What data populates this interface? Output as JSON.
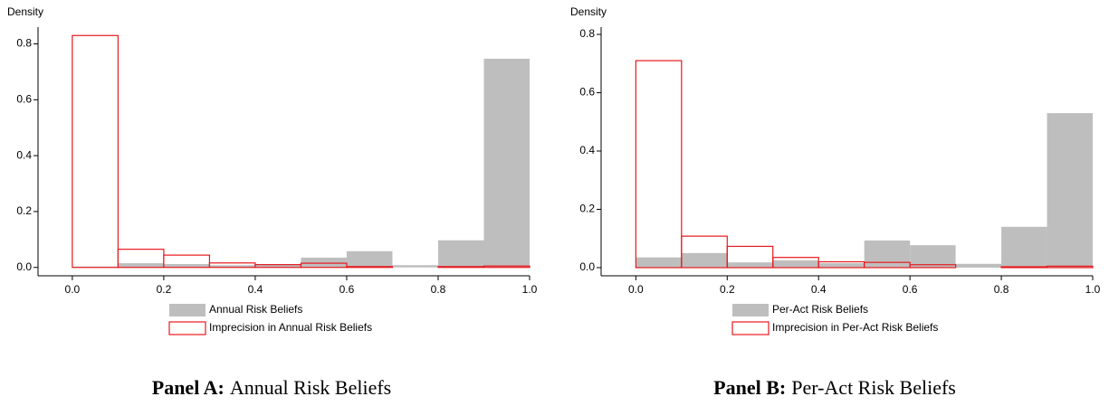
{
  "chart_data": [
    {
      "type": "histogram",
      "panel": "Panel A:",
      "title": "Annual Risk Beliefs",
      "ylabel": "Density",
      "bins": [
        0,
        0.1,
        0.2,
        0.3,
        0.4,
        0.5,
        0.6,
        0.7,
        0.8,
        0.9,
        1.0
      ],
      "xlim": [
        -0.075,
        1.0
      ],
      "ylim": [
        -0.03,
        0.86
      ],
      "xticks": [
        {
          "value": 0,
          "label": "0.0"
        },
        0.2,
        0.4,
        0.6,
        0.8,
        {
          "value": 1,
          "label": "1.0"
        }
      ],
      "yticks": [
        {
          "value": 0,
          "label": "0.0"
        },
        0.2,
        0.4,
        0.6,
        0.8
      ],
      "series": [
        {
          "name": "Annual Risk Beliefs",
          "color": "#bebebe",
          "filled": true,
          "values": [
            0.003,
            0.015,
            0.012,
            0.008,
            0.01,
            0.035,
            0.058,
            0.008,
            0.097,
            0.747
          ]
        },
        {
          "name": "Imprecision in Annual Risk Beliefs",
          "color": "#e8191e",
          "filled": false,
          "values": [
            0.83,
            0.065,
            0.044,
            0.016,
            0.01,
            0.015,
            0.003,
            0,
            0.003,
            0.005
          ]
        }
      ]
    },
    {
      "type": "histogram",
      "panel": "Panel B:",
      "title": "Per-Act Risk Beliefs",
      "ylabel": "Density",
      "bins": [
        0,
        0.1,
        0.2,
        0.3,
        0.4,
        0.5,
        0.6,
        0.7,
        0.8,
        0.9,
        1.0
      ],
      "xlim": [
        -0.076,
        1.0
      ],
      "ylim": [
        -0.028,
        0.825
      ],
      "xticks": [
        {
          "value": 0,
          "label": "0.0"
        },
        0.2,
        0.4,
        0.6,
        0.8,
        {
          "value": 1,
          "label": "1.0"
        }
      ],
      "yticks": [
        {
          "value": 0,
          "label": "0.0"
        },
        0.2,
        0.4,
        0.6,
        0.8
      ],
      "series": [
        {
          "name": "Per-Act Risk Beliefs",
          "color": "#bebebe",
          "filled": true,
          "values": [
            0.035,
            0.05,
            0.018,
            0.025,
            0.015,
            0.093,
            0.077,
            0.013,
            0.14,
            0.53
          ]
        },
        {
          "name": "Imprecision in Per-Act Risk Beliefs",
          "color": "#e8191e",
          "filled": false,
          "values": [
            0.71,
            0.108,
            0.073,
            0.035,
            0.02,
            0.018,
            0.01,
            0,
            0.003,
            0.005
          ]
        }
      ]
    }
  ]
}
